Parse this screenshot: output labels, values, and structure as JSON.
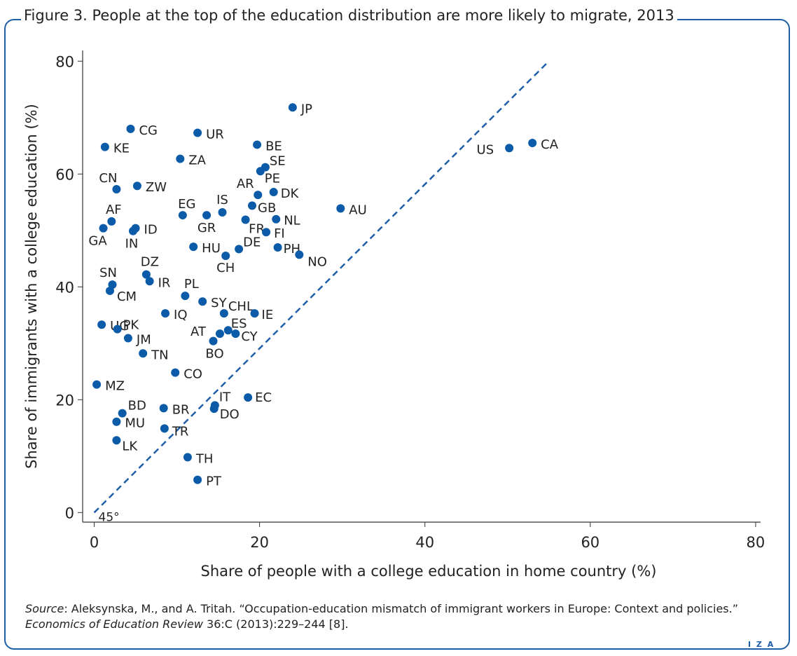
{
  "chart_data": {
    "type": "scatter",
    "title": "Figure 3. People at the top of the education distribution are more likely to migrate, 2013",
    "xlabel": "Share of people with a college education in home country (%)",
    "ylabel": "Share of immigrants with a college education (%)",
    "labels": [
      "JP",
      "CG",
      "UR",
      "KE",
      "BE",
      "US",
      "CA",
      "ZA",
      "SE",
      "PE",
      "CN",
      "ZW",
      "AR",
      "DK",
      "GB",
      "AU",
      "EG",
      "IS",
      "GR",
      "FR",
      "NL",
      "AF",
      "ID",
      "IN",
      "GA",
      "FI",
      "HU",
      "DE",
      "PH",
      "CH",
      "NO",
      "DZ",
      "IR",
      "SN",
      "CM",
      "PL",
      "SY",
      "CHL",
      "IE",
      "IQ",
      "UG",
      "PK",
      "ES",
      "AT",
      "CY",
      "JM",
      "BO",
      "TN",
      "CO",
      "MZ",
      "EC",
      "IT",
      "DO",
      "BR",
      "BD",
      "MU",
      "TR",
      "LK",
      "TH",
      "PT"
    ],
    "x": [
      24.0,
      4.4,
      12.5,
      1.3,
      19.7,
      50.2,
      53.0,
      10.4,
      20.7,
      20.1,
      2.7,
      5.2,
      19.8,
      21.7,
      19.1,
      29.8,
      10.7,
      15.5,
      13.6,
      18.3,
      22.0,
      2.1,
      5.0,
      4.7,
      1.1,
      20.8,
      12.0,
      17.5,
      22.2,
      15.9,
      24.8,
      6.3,
      6.7,
      2.2,
      1.9,
      11.0,
      13.1,
      15.7,
      19.4,
      8.6,
      0.9,
      2.8,
      16.2,
      15.2,
      17.1,
      4.1,
      14.4,
      5.9,
      9.8,
      0.3,
      18.6,
      14.6,
      14.5,
      8.4,
      3.4,
      2.7,
      8.5,
      2.7,
      11.3,
      12.5
    ],
    "values": [
      71.8,
      68.0,
      67.3,
      64.8,
      65.2,
      64.6,
      65.5,
      62.7,
      61.2,
      60.5,
      57.3,
      57.9,
      56.3,
      56.8,
      54.4,
      53.9,
      52.7,
      53.2,
      52.7,
      51.9,
      52.0,
      51.6,
      50.4,
      49.9,
      50.4,
      49.7,
      47.1,
      46.7,
      47.0,
      45.5,
      45.7,
      42.2,
      41.0,
      40.4,
      39.3,
      38.4,
      37.4,
      35.3,
      35.3,
      35.3,
      33.3,
      32.5,
      32.3,
      31.7,
      31.7,
      30.9,
      30.4,
      28.2,
      24.8,
      22.7,
      20.4,
      19.0,
      18.4,
      18.5,
      17.6,
      16.1,
      14.9,
      12.8,
      9.8,
      5.8
    ],
    "color": "#0b5ba8",
    "xlim": [
      -1.4,
      80.6
    ],
    "ylim": [
      -1.7,
      81.9
    ],
    "xticks": [
      0,
      20,
      40,
      60,
      80
    ],
    "yticks": [
      0,
      20,
      40,
      60,
      80
    ],
    "reference_line": {
      "x": [
        0,
        55
      ],
      "y": [
        0,
        80
      ],
      "label": "45°",
      "color": "#1f5fa8"
    },
    "source": {
      "label": "Source",
      "text1": ": Aleksynska, M., and A. Tritah. “Occupation-education mismatch of immigrant workers in Europe: Context and policies.” ",
      "journal": "Economics of Education Review",
      "text2": " 36:C (2013):229–244 [8]."
    },
    "logo": "I Z A"
  }
}
